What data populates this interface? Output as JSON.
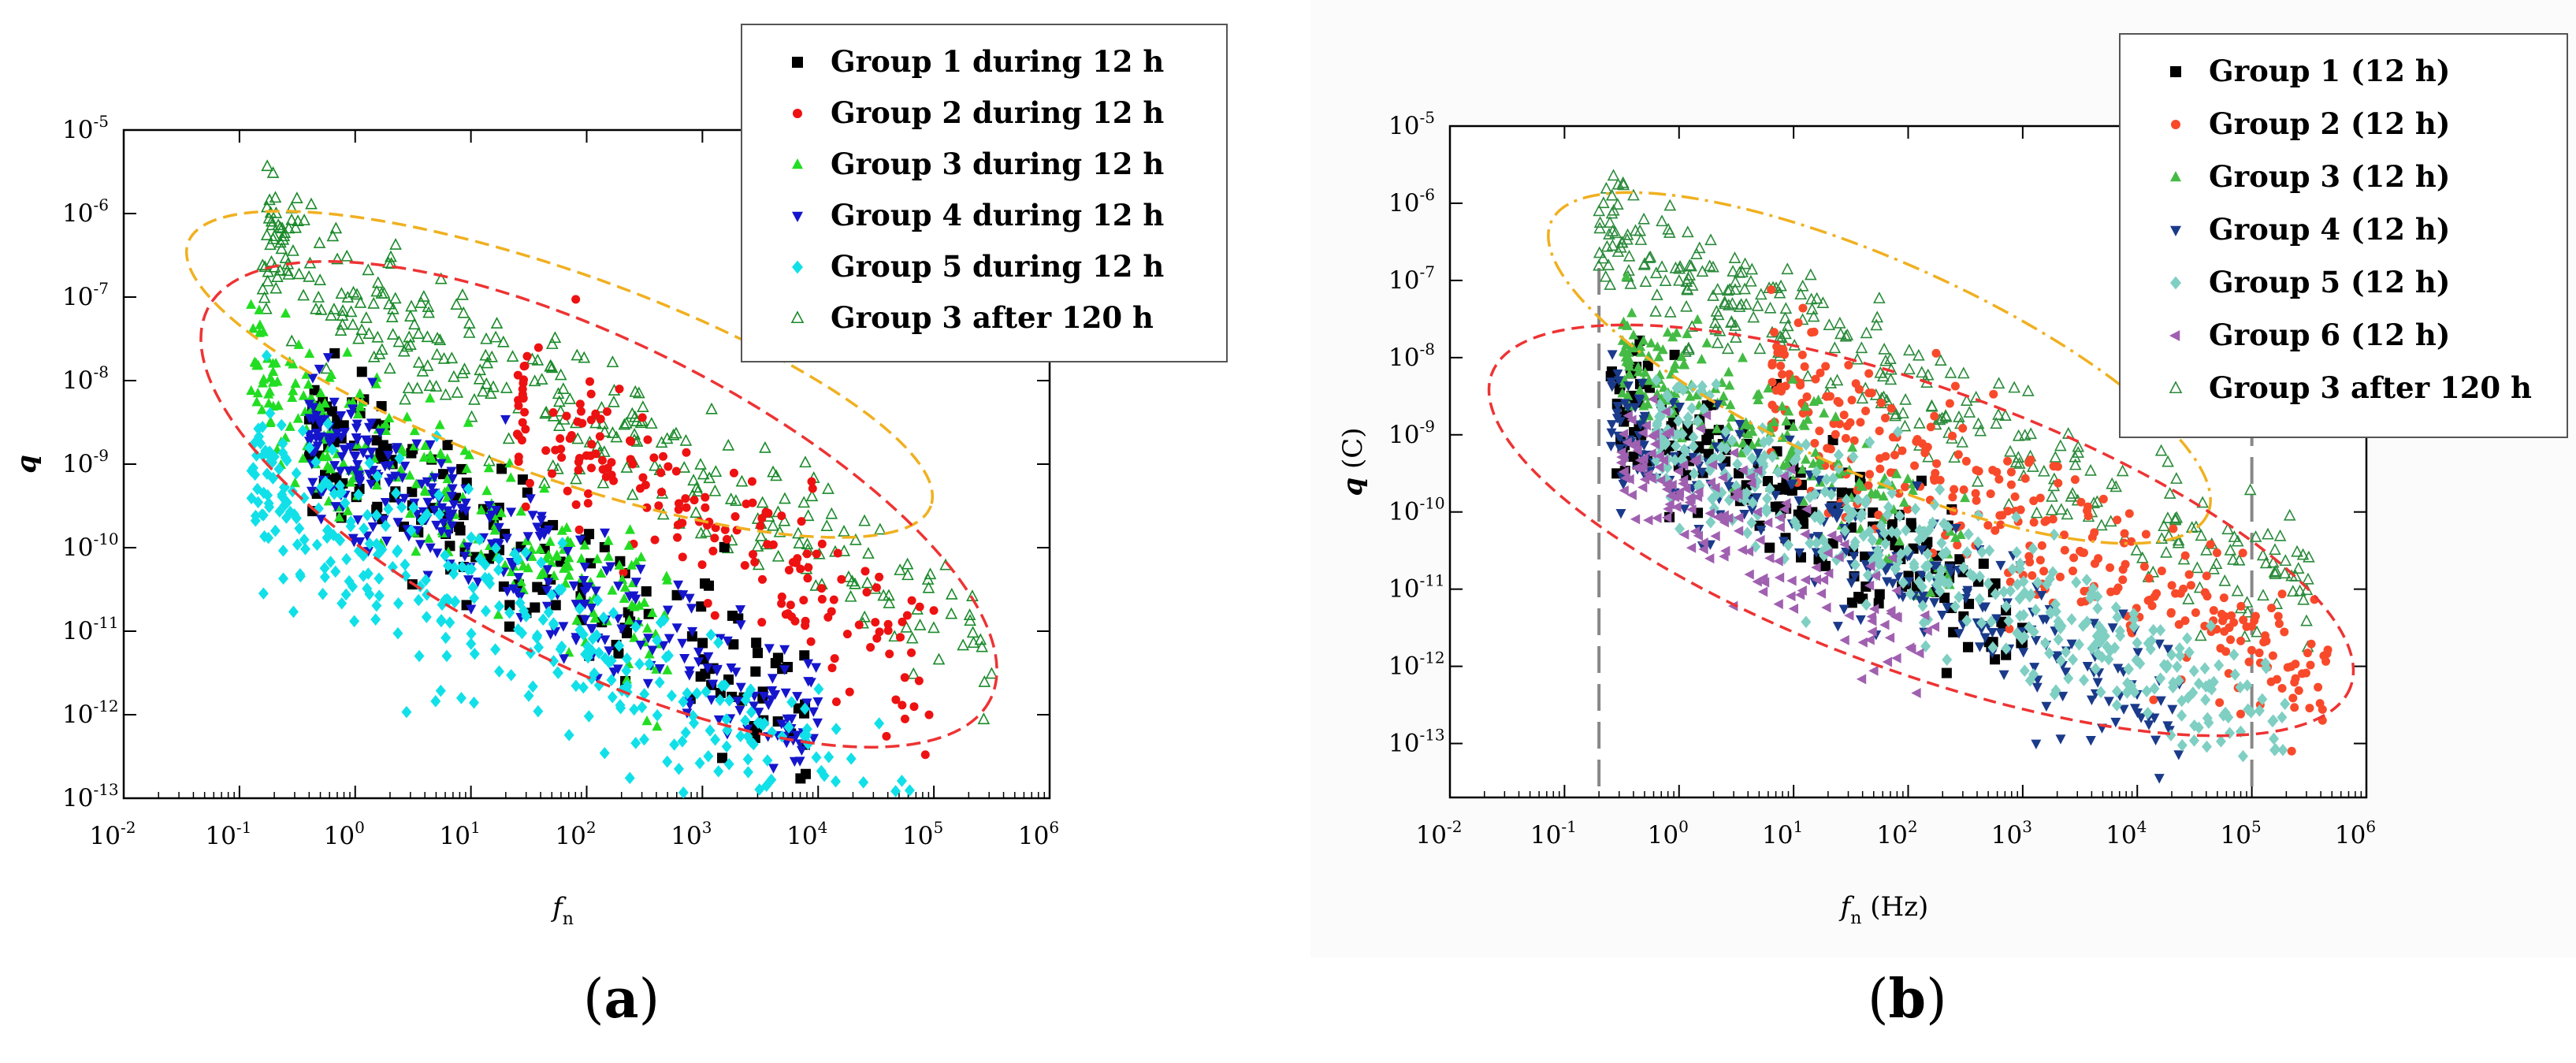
{
  "panels": [
    {
      "id": "a",
      "label": "a",
      "chart_data": {
        "type": "scatter",
        "title": "",
        "xlabel": "f",
        "xlabel_sub": "n",
        "ylabel": "q",
        "xscale": "log",
        "yscale": "log",
        "xlim": [
          0.01,
          1000000
        ],
        "ylim": [
          1e-13,
          1e-05
        ],
        "x_tick_exponents": [
          "-2",
          "-1",
          "0",
          "1",
          "2",
          "3",
          "4",
          "5",
          "6"
        ],
        "y_tick_exponents": [
          "-13",
          "-12",
          "-11",
          "-10",
          "-9",
          "-8",
          "-7",
          "-6",
          "-5"
        ],
        "legend_position": "top-right",
        "series": [
          {
            "name": "Group 1 during 12 h",
            "marker": "square",
            "color": "#000000",
            "count": 170,
            "cloud": {
              "x_log_range": [
                -0.4,
                3.9
              ],
              "center_log_q": -8.6,
              "slope": -0.78,
              "spread": 0.5
            }
          },
          {
            "name": "Group 2 during 12 h",
            "marker": "circle",
            "color": "#ee1111",
            "count": 190,
            "cloud": {
              "x_log_range": [
                1.4,
                5.0
              ],
              "center_log_q": -8.3,
              "slope": -0.85,
              "spread": 0.55
            }
          },
          {
            "name": "Group 3 during 12 h",
            "marker": "triangle-up",
            "color": "#22dd22",
            "count": 260,
            "cloud": {
              "x_log_range": [
                -0.9,
                2.7
              ],
              "center_log_q": -8.0,
              "slope": -0.82,
              "spread": 0.45
            }
          },
          {
            "name": "Group 4 during 12 h",
            "marker": "triangle-down",
            "color": "#1515cc",
            "count": 320,
            "cloud": {
              "x_log_range": [
                -0.4,
                4.0
              ],
              "center_log_q": -8.6,
              "slope": -0.8,
              "spread": 0.4
            }
          },
          {
            "name": "Group 5 during 12 h",
            "marker": "diamond",
            "color": "#11e0e8",
            "count": 380,
            "cloud": {
              "x_log_range": [
                -0.9,
                4.8
              ],
              "center_log_q": -9.2,
              "slope": -0.75,
              "spread": 0.55
            }
          },
          {
            "name": "Group 3 after 120 h",
            "marker": "triangle-open",
            "color": "#1a8a2a",
            "count": 330,
            "cloud": {
              "x_log_range": [
                -0.8,
                5.5
              ],
              "center_log_q": -6.3,
              "slope": -0.78,
              "spread": 0.45
            }
          }
        ],
        "annotations": [
          {
            "type": "ellipse",
            "style": "dashed",
            "color": "#f0b020",
            "encloses": "Group 3 after 120 h"
          },
          {
            "type": "ellipse",
            "style": "dashed",
            "color": "#ee3333",
            "encloses": "Groups 1-5 during 12 h"
          }
        ]
      }
    },
    {
      "id": "b",
      "label": "b",
      "chart_data": {
        "type": "scatter",
        "title": "",
        "xlabel": "f",
        "xlabel_sub": "n",
        "xlabel_unit": "(Hz)",
        "ylabel": "q",
        "ylabel_unit": "(C)",
        "xscale": "log",
        "yscale": "log",
        "xlim": [
          0.01,
          1000000
        ],
        "ylim": [
          2e-14,
          1e-05
        ],
        "x_tick_exponents": [
          "-2",
          "-1",
          "0",
          "1",
          "2",
          "3",
          "4",
          "5",
          "6"
        ],
        "y_tick_exponents": [
          "-13",
          "-12",
          "-11",
          "-10",
          "-9",
          "-8",
          "-7",
          "-6",
          "-5"
        ],
        "legend_position": "top-right",
        "series": [
          {
            "name": "Group 1 (12 h)",
            "marker": "square",
            "color": "#000000",
            "count": 180,
            "cloud": {
              "x_log_range": [
                -0.6,
                3.0
              ],
              "center_log_q": -8.6,
              "slope": -0.8,
              "spread": 0.45
            }
          },
          {
            "name": "Group 2 (12 h)",
            "marker": "circle",
            "color": "#f84a2a",
            "count": 330,
            "cloud": {
              "x_log_range": [
                0.8,
                5.7
              ],
              "center_log_q": -8.3,
              "slope": -0.82,
              "spread": 0.5
            }
          },
          {
            "name": "Group 3 (12 h)",
            "marker": "triangle-up",
            "color": "#44bb44",
            "count": 200,
            "cloud": {
              "x_log_range": [
                -0.5,
                2.5
              ],
              "center_log_q": -8.0,
              "slope": -0.82,
              "spread": 0.4
            }
          },
          {
            "name": "Group 4 (12 h)",
            "marker": "triangle-down",
            "color": "#1a3a8a",
            "count": 260,
            "cloud": {
              "x_log_range": [
                -0.6,
                4.4
              ],
              "center_log_q": -8.7,
              "slope": -0.8,
              "spread": 0.4
            }
          },
          {
            "name": "Group 5 (12 h)",
            "marker": "diamond",
            "color": "#7fcfc3",
            "count": 420,
            "cloud": {
              "x_log_range": [
                -0.2,
                5.3
              ],
              "center_log_q": -8.9,
              "slope": -0.72,
              "spread": 0.45
            }
          },
          {
            "name": "Group 6 (12 h)",
            "marker": "triangle-left",
            "color": "#a060b0",
            "count": 170,
            "cloud": {
              "x_log_range": [
                -0.5,
                2.3
              ],
              "center_log_q": -9.3,
              "slope": -0.85,
              "spread": 0.45
            }
          },
          {
            "name": "Group 3 after 120 h",
            "marker": "triangle-open",
            "color": "#2a8a3a",
            "count": 330,
            "cloud": {
              "x_log_range": [
                -0.7,
                5.5
              ],
              "center_log_q": -6.3,
              "slope": -0.78,
              "spread": 0.45
            }
          }
        ],
        "reference_lines": [
          {
            "axis": "x",
            "value": 0.2,
            "style": "dashed",
            "color": "#888888"
          },
          {
            "axis": "x",
            "value": 100000,
            "style": "dashed",
            "color": "#888888"
          }
        ],
        "annotations": [
          {
            "type": "ellipse",
            "style": "dash-dot",
            "color": "#f0b020",
            "encloses": "Group 3 after 120 h"
          },
          {
            "type": "ellipse",
            "style": "dashed",
            "color": "#ee3333",
            "encloses": "Groups 1-6 (12 h)"
          }
        ]
      }
    }
  ]
}
